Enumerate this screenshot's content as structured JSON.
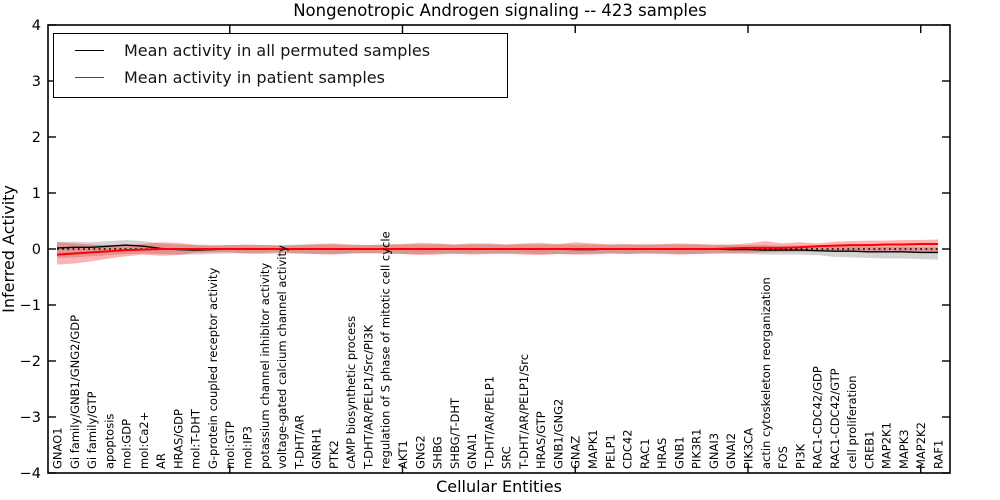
{
  "title": "Nongenotropic Androgen signaling -- 423 samples",
  "legend": {
    "entries": [
      {
        "label": "Mean activity in all permuted samples",
        "color": "#000000"
      },
      {
        "label": "Mean activity in patient samples",
        "color": "#ff0000"
      }
    ]
  },
  "colors": {
    "permuted_line": "#000000",
    "patient_line": "#ff0000",
    "permuted_band": "#808080",
    "patient_band": "#ff0000",
    "zero_line": "#000000"
  },
  "chart_data": {
    "type": "line",
    "title": "Nongenotropic Androgen signaling -- 423 samples",
    "xlabel": "Cellular Entities",
    "ylabel": "Inferred Activity",
    "ylim": [
      -4,
      4
    ],
    "yticks": [
      -4,
      -3,
      -2,
      -1,
      0,
      1,
      2,
      3,
      4
    ],
    "xticks_major": [
      10,
      20,
      30,
      40,
      50
    ],
    "grid": false,
    "legend_position": "upper left",
    "categories": [
      "GNAO1",
      "Gi family/GNB1/GNG2/GDP",
      "Gi family/GTP",
      "apoptosis",
      "mol:GDP",
      "mol:Ca2+",
      "AR",
      "HRAS/GDP",
      "mol:T-DHT",
      "G-protein coupled receptor activity",
      "mol:GTP",
      "mol:IP3",
      "potassium channel inhibitor activity",
      "voltage-gated calcium channel activity",
      "T-DHT/AR",
      "GNRH1",
      "PTK2",
      "cAMP biosynthetic process",
      "T-DHT/AR/PELP1/Src/PI3K",
      "regulation of S phase of mitotic cell cycle",
      "AKT1",
      "GNG2",
      "SHBG",
      "SHBG/T-DHT",
      "GNAI1",
      "T-DHT/AR/PELP1",
      "SRC",
      "T-DHT/AR/PELP1/Src",
      "HRAS/GTP",
      "GNB1/GNG2",
      "GNAZ",
      "MAPK1",
      "PELP1",
      "CDC42",
      "RAC1",
      "HRAS",
      "GNB1",
      "PIK3R1",
      "GNAI3",
      "GNAI2",
      "PIK3CA",
      "actin cytoskeleton reorganization",
      "FOS",
      "PI3K",
      "RAC1-CDC42/GDP",
      "RAC1-CDC42/GTP",
      "cell proliferation",
      "CREB1",
      "MAP2K1",
      "MAPK3",
      "MAP2K2",
      "RAF1"
    ],
    "series": [
      {
        "name": "Mean activity in all permuted samples",
        "color": "#000000",
        "style": "solid",
        "values": [
          0.02,
          0.03,
          0.03,
          0.05,
          0.07,
          0.05,
          0.01,
          -0.01,
          -0.02,
          -0.01,
          0.0,
          0.0,
          0.0,
          0.0,
          0.0,
          0.0,
          0.0,
          0.0,
          0.0,
          0.0,
          0.0,
          0.0,
          0.0,
          0.0,
          0.0,
          0.0,
          0.0,
          0.0,
          0.0,
          0.0,
          -0.01,
          -0.01,
          0.0,
          0.0,
          0.0,
          0.0,
          0.0,
          0.0,
          0.0,
          -0.01,
          -0.01,
          -0.02,
          -0.02,
          -0.02,
          -0.03,
          -0.04,
          -0.04,
          -0.05,
          -0.05,
          -0.05,
          -0.06,
          -0.06
        ]
      },
      {
        "name": "Mean activity in patient samples",
        "color": "#ff0000",
        "style": "solid",
        "values": [
          -0.1,
          -0.08,
          -0.06,
          -0.04,
          -0.02,
          -0.01,
          0.0,
          0.0,
          0.0,
          0.0,
          0.0,
          0.0,
          0.0,
          0.0,
          0.0,
          0.0,
          0.0,
          0.0,
          0.0,
          0.0,
          0.0,
          0.0,
          0.0,
          0.0,
          0.0,
          0.0,
          0.0,
          0.0,
          0.0,
          0.0,
          0.0,
          0.0,
          0.0,
          0.0,
          0.0,
          0.0,
          0.0,
          0.0,
          0.0,
          0.01,
          0.02,
          0.02,
          0.02,
          0.03,
          0.05,
          0.06,
          0.07,
          0.07,
          0.08,
          0.08,
          0.09,
          0.09
        ]
      }
    ],
    "bands": [
      {
        "name": "permuted-activity-range",
        "color": "#808080",
        "alpha": 0.35,
        "lower": [
          -0.16,
          -0.15,
          -0.13,
          -0.11,
          -0.09,
          -0.08,
          -0.09,
          -0.1,
          -0.1,
          -0.09,
          -0.08,
          -0.08,
          -0.09,
          -0.08,
          -0.08,
          -0.09,
          -0.09,
          -0.08,
          -0.08,
          -0.08,
          -0.09,
          -0.09,
          -0.08,
          -0.09,
          -0.08,
          -0.08,
          -0.09,
          -0.08,
          -0.09,
          -0.09,
          -0.09,
          -0.08,
          -0.08,
          -0.09,
          -0.08,
          -0.08,
          -0.09,
          -0.09,
          -0.08,
          -0.08,
          -0.09,
          -0.1,
          -0.1,
          -0.1,
          -0.11,
          -0.14,
          -0.15,
          -0.16,
          -0.17,
          -0.17,
          -0.18,
          -0.19
        ],
        "upper": [
          0.13,
          0.13,
          0.12,
          0.14,
          0.16,
          0.14,
          0.1,
          0.08,
          0.08,
          0.07,
          0.07,
          0.07,
          0.07,
          0.07,
          0.08,
          0.08,
          0.08,
          0.07,
          0.07,
          0.08,
          0.08,
          0.08,
          0.08,
          0.08,
          0.08,
          0.08,
          0.08,
          0.08,
          0.08,
          0.08,
          0.08,
          0.08,
          0.08,
          0.08,
          0.08,
          0.08,
          0.08,
          0.08,
          0.07,
          0.07,
          0.07,
          0.07,
          0.06,
          0.06,
          0.06,
          0.05,
          0.05,
          0.04,
          0.04,
          0.04,
          0.03,
          0.03
        ]
      },
      {
        "name": "patient-activity-range",
        "color": "#ff0000",
        "alpha": 0.3,
        "lower": [
          -0.28,
          -0.26,
          -0.22,
          -0.17,
          -0.13,
          -0.1,
          -0.12,
          -0.11,
          -0.07,
          -0.06,
          -0.06,
          -0.08,
          -0.07,
          -0.06,
          -0.08,
          -0.09,
          -0.1,
          -0.08,
          -0.07,
          -0.08,
          -0.09,
          -0.11,
          -0.1,
          -0.08,
          -0.1,
          -0.09,
          -0.08,
          -0.1,
          -0.11,
          -0.09,
          -0.1,
          -0.1,
          -0.08,
          -0.09,
          -0.08,
          -0.09,
          -0.1,
          -0.09,
          -0.08,
          -0.08,
          -0.07,
          -0.06,
          -0.05,
          -0.05,
          -0.04,
          -0.04,
          -0.04,
          -0.05,
          -0.05,
          -0.06,
          -0.06,
          -0.07
        ],
        "upper": [
          0.12,
          0.1,
          0.08,
          0.07,
          0.07,
          0.09,
          0.12,
          0.11,
          0.07,
          0.06,
          0.07,
          0.08,
          0.07,
          0.06,
          0.07,
          0.09,
          0.1,
          0.08,
          0.07,
          0.08,
          0.09,
          0.11,
          0.1,
          0.08,
          0.1,
          0.1,
          0.08,
          0.1,
          0.11,
          0.09,
          0.12,
          0.1,
          0.08,
          0.09,
          0.08,
          0.09,
          0.1,
          0.09,
          0.08,
          0.08,
          0.1,
          0.14,
          0.1,
          0.12,
          0.1,
          0.13,
          0.14,
          0.15,
          0.15,
          0.16,
          0.16,
          0.17
        ]
      }
    ],
    "zero_line": {
      "value": 0,
      "style": "dotted",
      "color": "#000000"
    }
  }
}
